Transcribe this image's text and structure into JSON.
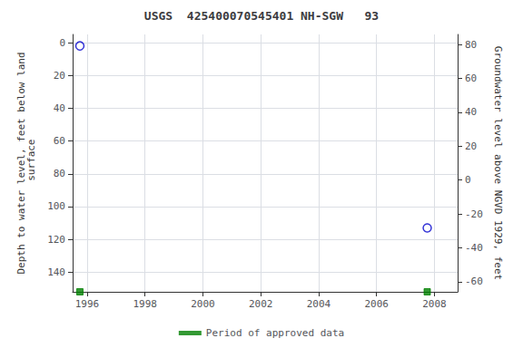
{
  "chart_data": {
    "type": "scatter",
    "title": "USGS  425400070545401 NH-SGW   93",
    "xlim": [
      1995.5,
      2008.8
    ],
    "xticks": [
      1996,
      1998,
      2000,
      2002,
      2004,
      2006,
      2008
    ],
    "ylim": [
      152,
      -5
    ],
    "yticks": [
      0,
      20,
      40,
      60,
      80,
      100,
      120,
      140
    ],
    "ylabel": "Depth to water level, feet below land\n surface",
    "y2lim": [
      -66,
      86
    ],
    "y2ticks": [
      80,
      60,
      40,
      20,
      0,
      -20,
      -40,
      -60
    ],
    "y2label": "Groundwater level above NGVD 1929, feet",
    "grid": true,
    "legend": "bottom",
    "series": [
      {
        "x": [
          1995.75,
          2007.75
        ],
        "values": [
          2,
          113
        ],
        "color": "#0000cc",
        "marker": "open-circle"
      },
      {
        "name": "Period of approved data",
        "x": [
          1995.75,
          2007.75
        ],
        "values": [
          152,
          152
        ],
        "color": "#008000",
        "marker": "square"
      }
    ]
  }
}
